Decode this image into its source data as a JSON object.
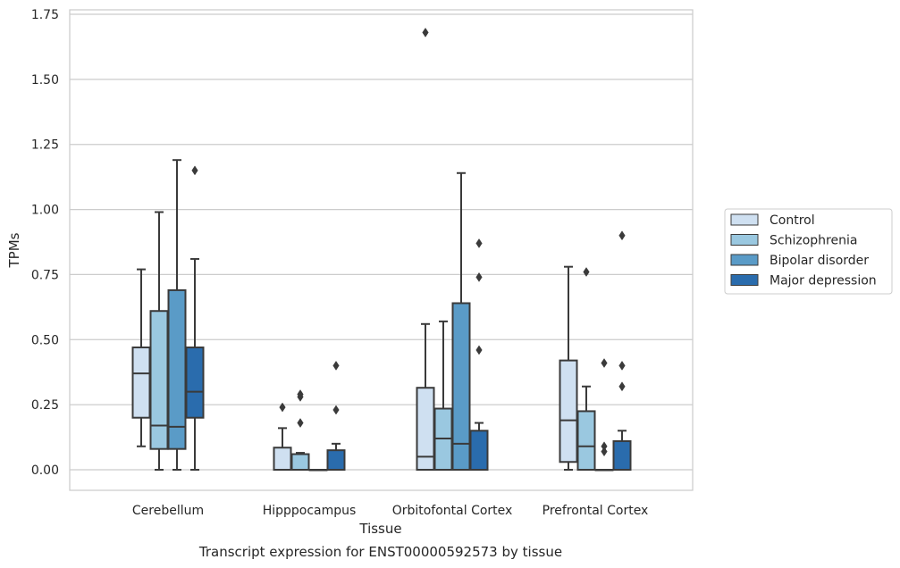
{
  "chart_data": {
    "type": "box",
    "title": "Transcript expression for ENST00000592573 by tissue",
    "xlabel": "Tissue",
    "ylabel": "TPMs",
    "ylim": [
      -0.08,
      1.76
    ],
    "yticks": [
      "0.00",
      "0.25",
      "0.50",
      "0.75",
      "1.00",
      "1.25",
      "1.50",
      "1.75"
    ],
    "categories": [
      "Cerebellum",
      "Hipppocampus",
      "Orbitofontal Cortex",
      "Prefrontal Cortex"
    ],
    "grid": "horizontal",
    "legend_position": "right",
    "series": [
      {
        "name": "Control",
        "color": "#cfe0f1",
        "boxes": [
          {
            "q1": 0.2,
            "median": 0.37,
            "q3": 0.47,
            "whislo": 0.09,
            "whishi": 0.77,
            "fliers": []
          },
          {
            "q1": 0.0,
            "median": 0.0,
            "q3": 0.085,
            "whislo": 0.0,
            "whishi": 0.16,
            "fliers": [
              0.24
            ]
          },
          {
            "q1": 0.0,
            "median": 0.05,
            "q3": 0.315,
            "whislo": 0.0,
            "whishi": 0.56,
            "fliers": [
              1.68
            ]
          },
          {
            "q1": 0.03,
            "median": 0.19,
            "q3": 0.42,
            "whislo": 0.0,
            "whishi": 0.78,
            "fliers": []
          }
        ]
      },
      {
        "name": "Schizophrenia",
        "color": "#9ac8e0",
        "boxes": [
          {
            "q1": 0.08,
            "median": 0.17,
            "q3": 0.61,
            "whislo": 0.0,
            "whishi": 0.99,
            "fliers": []
          },
          {
            "q1": 0.0,
            "median": 0.0,
            "q3": 0.06,
            "whislo": 0.0,
            "whishi": 0.065,
            "fliers": [
              0.18,
              0.28,
              0.29
            ]
          },
          {
            "q1": 0.0,
            "median": 0.12,
            "q3": 0.235,
            "whislo": 0.0,
            "whishi": 0.57,
            "fliers": []
          },
          {
            "q1": 0.0,
            "median": 0.09,
            "q3": 0.225,
            "whislo": 0.0,
            "whishi": 0.32,
            "fliers": [
              0.76
            ]
          }
        ]
      },
      {
        "name": "Bipolar disorder",
        "color": "#5a9bc7",
        "boxes": [
          {
            "q1": 0.08,
            "median": 0.165,
            "q3": 0.69,
            "whislo": 0.0,
            "whishi": 1.19,
            "fliers": []
          },
          {
            "q1": 0.0,
            "median": 0.0,
            "q3": 0.0,
            "whislo": 0.0,
            "whishi": 0.0,
            "fliers": []
          },
          {
            "q1": 0.0,
            "median": 0.1,
            "q3": 0.64,
            "whislo": 0.0,
            "whishi": 1.14,
            "fliers": []
          },
          {
            "q1": 0.0,
            "median": 0.0,
            "q3": 0.0,
            "whislo": 0.0,
            "whishi": 0.0,
            "fliers": [
              0.07,
              0.09,
              0.41
            ]
          }
        ]
      },
      {
        "name": "Major depression",
        "color": "#2a6cad",
        "boxes": [
          {
            "q1": 0.2,
            "median": 0.3,
            "q3": 0.47,
            "whislo": 0.0,
            "whishi": 0.81,
            "fliers": [
              1.15
            ]
          },
          {
            "q1": 0.0,
            "median": 0.0,
            "q3": 0.075,
            "whislo": 0.0,
            "whishi": 0.1,
            "fliers": [
              0.23,
              0.4
            ]
          },
          {
            "q1": 0.0,
            "median": 0.0,
            "q3": 0.15,
            "whislo": 0.0,
            "whishi": 0.18,
            "fliers": [
              0.46,
              0.74,
              0.87
            ]
          },
          {
            "q1": 0.0,
            "median": 0.0,
            "q3": 0.11,
            "whislo": 0.0,
            "whishi": 0.15,
            "fliers": [
              0.32,
              0.4,
              0.9
            ]
          }
        ]
      }
    ]
  }
}
